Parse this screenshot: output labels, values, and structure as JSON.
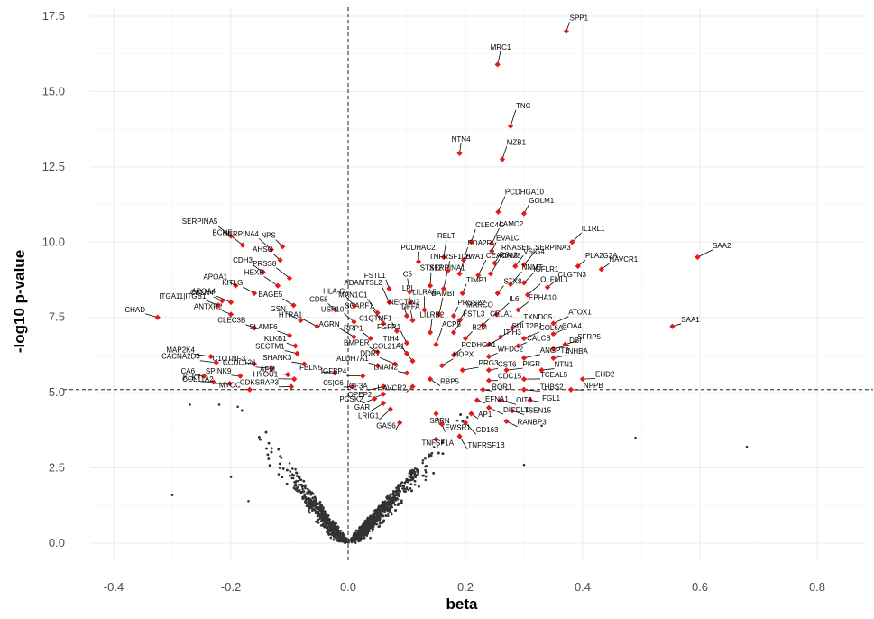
{
  "chart_data": {
    "type": "scatter",
    "title": "",
    "xlabel": "beta",
    "ylabel": "-log10 p-value",
    "xlim": [
      -0.44,
      0.88
    ],
    "ylim": [
      -0.6,
      17.8
    ],
    "x_ticks": [
      -0.4,
      -0.2,
      0.0,
      0.2,
      0.4,
      0.6,
      0.8
    ],
    "x_tick_labels": [
      "-0.4",
      "-0.2",
      "0.0",
      "0.2",
      "0.4",
      "0.6",
      "0.8"
    ],
    "y_ticks": [
      0,
      2.5,
      5.0,
      7.5,
      10.0,
      12.5,
      15.0,
      17.5
    ],
    "y_tick_labels": [
      "0.0",
      "2.5",
      "5.0",
      "7.5",
      "10.0",
      "12.5",
      "15.0",
      "17.5"
    ],
    "grid": true,
    "reference_lines": {
      "x": 0.0,
      "y": 5.1,
      "style": "dashed"
    },
    "colors": {
      "background_points": "#333333",
      "significant_points": "#e31a1c",
      "grid": "#ebebeb"
    },
    "significant_genes": [
      {
        "gene": "SPP1",
        "x": 0.372,
        "y": 17.0
      },
      {
        "gene": "MRC1",
        "x": 0.255,
        "y": 15.9
      },
      {
        "gene": "TNC",
        "x": 0.277,
        "y": 13.85
      },
      {
        "gene": "NTN4",
        "x": 0.19,
        "y": 12.95
      },
      {
        "gene": "MZB1",
        "x": 0.263,
        "y": 12.75
      },
      {
        "gene": "PCDHGA10",
        "x": 0.256,
        "y": 11.0
      },
      {
        "gene": "GOLM1",
        "x": 0.3,
        "y": 10.95
      },
      {
        "gene": "IL1RL1",
        "x": 0.382,
        "y": 10.0
      },
      {
        "gene": "SAA2",
        "x": 0.596,
        "y": 9.5
      },
      {
        "gene": "SAA1",
        "x": 0.553,
        "y": 7.2
      },
      {
        "gene": "CHAD",
        "x": -0.325,
        "y": 7.5
      },
      {
        "gene": "SERPINA5",
        "x": -0.2,
        "y": 10.2
      },
      {
        "gene": "NPS",
        "x": -0.112,
        "y": 9.85
      },
      {
        "gene": "BCHE",
        "x": -0.18,
        "y": 9.9
      },
      {
        "gene": "SERPINA4",
        "x": -0.131,
        "y": 9.75
      },
      {
        "gene": "AHSG",
        "x": -0.116,
        "y": 9.4
      },
      {
        "gene": "CDH3",
        "x": -0.145,
        "y": 9.0
      },
      {
        "gene": "PRSS8",
        "x": -0.1,
        "y": 8.8
      },
      {
        "gene": "APOA1",
        "x": -0.192,
        "y": 8.55
      },
      {
        "gene": "KITLG",
        "x": -0.16,
        "y": 8.3
      },
      {
        "gene": "HEXB",
        "x": -0.12,
        "y": 8.55
      },
      {
        "gene": "CBLN4",
        "x": -0.215,
        "y": 8.05
      },
      {
        "gene": "ITGA11|ITGB1",
        "x": -0.222,
        "y": 7.9
      },
      {
        "gene": "APOA4",
        "x": -0.2,
        "y": 8.0
      },
      {
        "gene": "ANTXR2",
        "x": -0.2,
        "y": 7.6
      },
      {
        "gene": "BAGE5",
        "x": -0.093,
        "y": 7.9
      },
      {
        "gene": "GSN",
        "x": -0.081,
        "y": 7.4
      },
      {
        "gene": "CLEC3B",
        "x": -0.16,
        "y": 7.15
      },
      {
        "gene": "SLAMF6",
        "x": -0.1,
        "y": 6.9
      },
      {
        "gene": "MAP2K4",
        "x": -0.234,
        "y": 6.2
      },
      {
        "gene": "KLKB1",
        "x": -0.09,
        "y": 6.55
      },
      {
        "gene": "SECTM1",
        "x": -0.087,
        "y": 6.3
      },
      {
        "gene": "CACNA2D3",
        "x": -0.225,
        "y": 6.0
      },
      {
        "gene": "C1QTNF3",
        "x": -0.16,
        "y": 5.95
      },
      {
        "gene": "SHANK3",
        "x": -0.075,
        "y": 5.95
      },
      {
        "gene": "CCDC126",
        "x": -0.13,
        "y": 5.8
      },
      {
        "gene": "CA6",
        "x": -0.246,
        "y": 5.55
      },
      {
        "gene": "KLK7",
        "x": -0.23,
        "y": 5.35
      },
      {
        "gene": "COL11A2",
        "x": -0.202,
        "y": 5.3
      },
      {
        "gene": "SPINK9",
        "x": -0.184,
        "y": 5.55
      },
      {
        "gene": "AFM",
        "x": -0.103,
        "y": 5.6
      },
      {
        "gene": "HYOU1",
        "x": -0.092,
        "y": 5.45
      },
      {
        "gene": "MYOC",
        "x": -0.168,
        "y": 5.1
      },
      {
        "gene": "CDKSRAP3",
        "x": -0.097,
        "y": 5.2
      },
      {
        "gene": "HTRA1",
        "x": -0.053,
        "y": 7.2
      },
      {
        "gene": "CD58",
        "x": -0.022,
        "y": 7.75
      },
      {
        "gene": "USP10",
        "x": 0.01,
        "y": 7.35
      },
      {
        "gene": "AGRN",
        "x": 0.01,
        "y": 6.85
      },
      {
        "gene": "RRP1",
        "x": 0.038,
        "y": 6.8
      },
      {
        "gene": "FBLN5",
        "x": -0.023,
        "y": 5.65
      },
      {
        "gene": "IGFBP4",
        "x": 0.025,
        "y": 5.55
      },
      {
        "gene": "C5|C6",
        "x": 0.007,
        "y": 5.2
      },
      {
        "gene": "PCSK2",
        "x": 0.045,
        "y": 4.8
      },
      {
        "gene": "LRIG1",
        "x": 0.072,
        "y": 4.45
      },
      {
        "gene": "GAS6",
        "x": 0.088,
        "y": 4.0
      },
      {
        "gene": "CLEC4G",
        "x": 0.21,
        "y": 10.0
      },
      {
        "gene": "LAMC2",
        "x": 0.245,
        "y": 9.95
      },
      {
        "gene": "EVA1C",
        "x": 0.245,
        "y": 9.7
      },
      {
        "gene": "EDA2R",
        "x": 0.197,
        "y": 9.4
      },
      {
        "gene": "RELT",
        "x": 0.163,
        "y": 9.5
      },
      {
        "gene": "PCDHAC2",
        "x": 0.12,
        "y": 9.35
      },
      {
        "gene": "RNASE6",
        "x": 0.25,
        "y": 9.3
      },
      {
        "gene": "SERPINA3",
        "x": 0.3,
        "y": 9.25
      },
      {
        "gene": "TNFRSF10B",
        "x": 0.17,
        "y": 9.05
      },
      {
        "gene": "VWA1",
        "x": 0.19,
        "y": 8.95
      },
      {
        "gene": "CEACAM8",
        "x": 0.222,
        "y": 8.9
      },
      {
        "gene": "PLA2G2A",
        "x": 0.392,
        "y": 9.2
      },
      {
        "gene": "VSIG4",
        "x": 0.285,
        "y": 9.2
      },
      {
        "gene": "RBL2",
        "x": 0.243,
        "y": 8.95
      },
      {
        "gene": "HAVCR1",
        "x": 0.432,
        "y": 9.1
      },
      {
        "gene": "IGFLR1",
        "x": 0.3,
        "y": 8.65
      },
      {
        "gene": "NNMT",
        "x": 0.277,
        "y": 8.6
      },
      {
        "gene": "TIMP1",
        "x": 0.195,
        "y": 8.3
      },
      {
        "gene": "CLGTN3",
        "x": 0.34,
        "y": 8.5
      },
      {
        "gene": "OLFML1",
        "x": 0.306,
        "y": 8.25
      },
      {
        "gene": "STX8",
        "x": 0.255,
        "y": 8.3
      },
      {
        "gene": "STX12",
        "x": 0.14,
        "y": 8.55
      },
      {
        "gene": "SERPINA1",
        "x": 0.163,
        "y": 8.45
      },
      {
        "gene": "FSTL1",
        "x": 0.07,
        "y": 8.45
      },
      {
        "gene": "C5",
        "x": 0.105,
        "y": 8.35
      },
      {
        "gene": "ADAMTSL2",
        "x": 0.07,
        "y": 8.0
      },
      {
        "gene": "LPL",
        "x": 0.106,
        "y": 8.0
      },
      {
        "gene": "LILRA5",
        "x": 0.13,
        "y": 7.75
      },
      {
        "gene": "MAN1C1",
        "x": 0.05,
        "y": 7.65
      },
      {
        "gene": "NECTIN2",
        "x": 0.1,
        "y": 7.55
      },
      {
        "gene": "HLA-G",
        "x": 0.01,
        "y": 7.9
      },
      {
        "gene": "BAMBI",
        "x": 0.155,
        "y": 7.6
      },
      {
        "gene": "PRSS22",
        "x": 0.18,
        "y": 7.55
      },
      {
        "gene": "EPHA10",
        "x": 0.29,
        "y": 7.75
      },
      {
        "gene": "SCARF1",
        "x": 0.06,
        "y": 7.3
      },
      {
        "gene": "DFFA",
        "x": 0.11,
        "y": 7.4
      },
      {
        "gene": "MARCO",
        "x": 0.19,
        "y": 7.4
      },
      {
        "gene": "IL6",
        "x": 0.253,
        "y": 7.6
      },
      {
        "gene": "CELA1",
        "x": 0.23,
        "y": 7.25
      },
      {
        "gene": "TXNDC5",
        "x": 0.28,
        "y": 7.15
      },
      {
        "gene": "ATOX1",
        "x": 0.35,
        "y": 7.3
      },
      {
        "gene": "C1QTNF1",
        "x": 0.083,
        "y": 7.05
      },
      {
        "gene": "LILRB2",
        "x": 0.14,
        "y": 7.0
      },
      {
        "gene": "FSTL3",
        "x": 0.18,
        "y": 7.0
      },
      {
        "gene": "B2M",
        "x": 0.2,
        "y": 6.8
      },
      {
        "gene": "SULT2B1",
        "x": 0.26,
        "y": 6.85
      },
      {
        "gene": "COL6A3",
        "x": 0.3,
        "y": 6.8
      },
      {
        "gene": "COA4",
        "x": 0.35,
        "y": 6.95
      },
      {
        "gene": "FGFR1",
        "x": 0.1,
        "y": 6.65
      },
      {
        "gene": "ITIH3",
        "x": 0.24,
        "y": 6.6
      },
      {
        "gene": "CALCB",
        "x": 0.29,
        "y": 6.55
      },
      {
        "gene": "SFRP5",
        "x": 0.37,
        "y": 6.6
      },
      {
        "gene": "DBI",
        "x": 0.35,
        "y": 6.45
      },
      {
        "gene": "BMPER",
        "x": 0.05,
        "y": 6.35
      },
      {
        "gene": "ITIH4",
        "x": 0.1,
        "y": 6.3
      },
      {
        "gene": "ACP5",
        "x": 0.15,
        "y": 6.6
      },
      {
        "gene": "PCDHGA1",
        "x": 0.18,
        "y": 6.25
      },
      {
        "gene": "INHBA",
        "x": 0.35,
        "y": 6.15
      },
      {
        "gene": "ANGPT2",
        "x": 0.3,
        "y": 6.15
      },
      {
        "gene": "WFDC2",
        "x": 0.24,
        "y": 6.2
      },
      {
        "gene": "COL21A1",
        "x": 0.11,
        "y": 6.05
      },
      {
        "gene": "DDR1",
        "x": 0.08,
        "y": 5.95
      },
      {
        "gene": "ALDH7A1",
        "x": 0.05,
        "y": 5.9
      },
      {
        "gene": "HOPX",
        "x": 0.16,
        "y": 5.9
      },
      {
        "gene": "PIGR",
        "x": 0.27,
        "y": 5.75
      },
      {
        "gene": "CST6",
        "x": 0.24,
        "y": 5.75
      },
      {
        "gene": "NTN1",
        "x": 0.33,
        "y": 5.75
      },
      {
        "gene": "PRG3",
        "x": 0.195,
        "y": 5.75
      },
      {
        "gene": "LMAN2",
        "x": 0.1,
        "y": 5.65
      },
      {
        "gene": "RBP5",
        "x": 0.14,
        "y": 5.45
      },
      {
        "gene": "IGF3A",
        "x": 0.06,
        "y": 5.2
      },
      {
        "gene": "HAVCR2",
        "x": 0.11,
        "y": 5.2
      },
      {
        "gene": "EHD2",
        "x": 0.4,
        "y": 5.45
      },
      {
        "gene": "TCEAL5",
        "x": 0.3,
        "y": 5.45
      },
      {
        "gene": "CDC15",
        "x": 0.24,
        "y": 5.4
      },
      {
        "gene": "NPPB",
        "x": 0.38,
        "y": 5.1
      },
      {
        "gene": "THBS2",
        "x": 0.3,
        "y": 5.1
      },
      {
        "gene": "ROR1",
        "x": 0.23,
        "y": 5.1
      },
      {
        "gene": "FGL1",
        "x": 0.31,
        "y": 4.75
      },
      {
        "gene": "OIT3",
        "x": 0.26,
        "y": 4.75
      },
      {
        "gene": "EFNA1",
        "x": 0.22,
        "y": 4.75
      },
      {
        "gene": "TSEN15",
        "x": 0.28,
        "y": 4.4
      },
      {
        "gene": "DICDL1",
        "x": 0.24,
        "y": 4.5
      },
      {
        "gene": "AP1",
        "x": 0.21,
        "y": 4.3
      },
      {
        "gene": "RANBP3",
        "x": 0.27,
        "y": 4.05
      },
      {
        "gene": "CD163",
        "x": 0.2,
        "y": 4.0
      },
      {
        "gene": "EWSR1",
        "x": 0.16,
        "y": 3.95
      },
      {
        "gene": "SPRN",
        "x": 0.15,
        "y": 4.3
      },
      {
        "gene": "TNFRSF1B",
        "x": 0.19,
        "y": 3.55
      },
      {
        "gene": "TNFSF1A",
        "x": 0.15,
        "y": 3.45
      },
      {
        "gene": "OPEP2",
        "x": 0.06,
        "y": 4.95
      },
      {
        "gene": "GAR",
        "x": 0.06,
        "y": 4.65
      }
    ],
    "n_background_points": 3200
  }
}
